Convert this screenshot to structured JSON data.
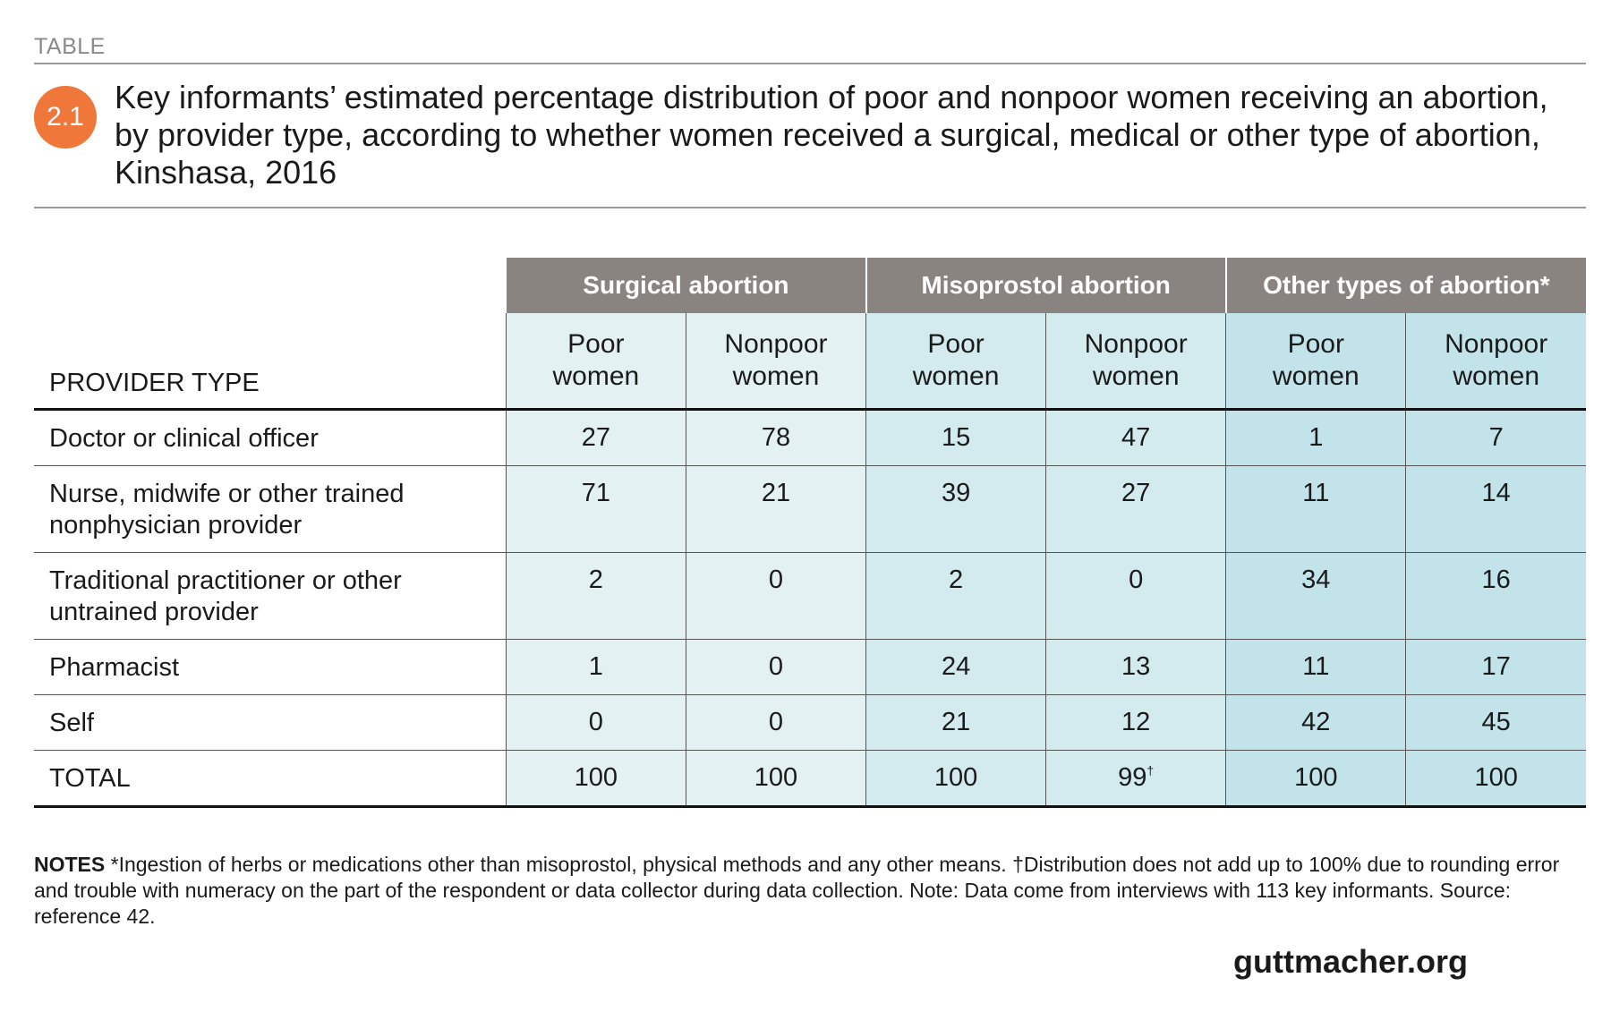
{
  "header": {
    "label": "TABLE",
    "badge": "2.1",
    "title": "Key informants’ estimated percentage distribution of poor and nonpoor women receiving an abortion, by provider type, according to whether women received a surgical, medical or other type of abortion, Kinshasa, 2016"
  },
  "table": {
    "groups": [
      "Surgical abortion",
      "Misoprostol abortion",
      "Other types of abortion*"
    ],
    "row_header": "PROVIDER TYPE",
    "subheaders": [
      [
        "Poor",
        "women"
      ],
      [
        "Nonpoor",
        "women"
      ],
      [
        "Poor",
        "women"
      ],
      [
        "Nonpoor",
        "women"
      ],
      [
        "Poor",
        "women"
      ],
      [
        "Nonpoor",
        "women"
      ]
    ],
    "rows": [
      {
        "label": "Doctor or clinical officer",
        "values": [
          "27",
          "78",
          "15",
          "47",
          "1",
          "7"
        ]
      },
      {
        "label": "Nurse, midwife or other trained nonphysician provider",
        "values": [
          "71",
          "21",
          "39",
          "27",
          "11",
          "14"
        ]
      },
      {
        "label": "Traditional practitioner or other untrained provider",
        "values": [
          "2",
          "0",
          "2",
          "0",
          "34",
          "16"
        ]
      },
      {
        "label": "Pharmacist",
        "values": [
          "1",
          "0",
          "24",
          "13",
          "11",
          "17"
        ]
      },
      {
        "label": "Self",
        "values": [
          "0",
          "0",
          "21",
          "12",
          "42",
          "45"
        ]
      },
      {
        "label": "TOTAL",
        "values": [
          "100",
          "100",
          "100",
          "99",
          "100",
          "100"
        ],
        "footnote_mark": "†"
      }
    ],
    "colors": {
      "group_header": "#8a8480",
      "surgical": "#e3f1f3",
      "misoprostol": "#d3eaee",
      "other": "#c1e3e9",
      "badge": "#f0773a"
    }
  },
  "notes": {
    "label": "NOTES",
    "text": "*Ingestion of herbs or medications other than misoprostol, physical methods and any other means. †Distribution does not add up to 100% due to rounding error and trouble with numeracy on the part of the respondent or data collector during data collection. Note: Data come from interviews with 113 key informants. Source: reference 42."
  },
  "brand": "guttmacher.org"
}
